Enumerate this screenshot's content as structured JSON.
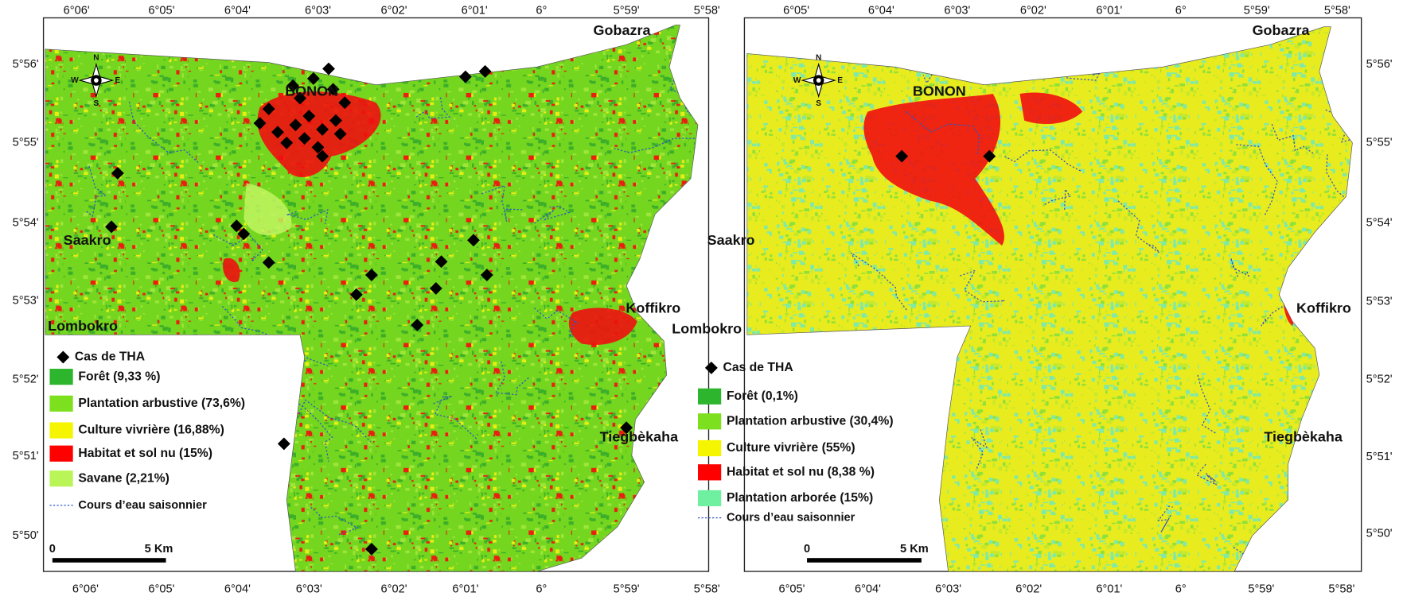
{
  "left_map": {
    "top_longitudes": [
      "6°06'",
      "6°05'",
      "6°04'",
      "6°03'",
      "6°02'",
      "6°01'",
      "6°",
      "5°59'",
      "5°58'"
    ],
    "bottom_longitudes": [
      "6°06'",
      "6°05'",
      "6°04'",
      "6°03'",
      "6°02'",
      "6°01'",
      "6°",
      "5°59'",
      "5°58'"
    ],
    "latitudes": [
      "5°56'",
      "5°55'",
      "5°54'",
      "5°53'",
      "5°52'",
      "5°51'",
      "5°50'"
    ],
    "places": [
      "Gobazra",
      "BONON",
      "Saakro",
      "Lombokro",
      "Koffikro",
      "Tiegbèkaha"
    ],
    "compass": [
      "N",
      "S",
      "E",
      "W"
    ],
    "legend": {
      "title": "Cas de THA",
      "items": [
        "Forêt (9,33 %)",
        "Plantation arbustive (73,6%)",
        "Culture vivrière (16,88%)",
        "Habitat et sol nu (15%)",
        "Savane (2,21%)"
      ],
      "river": "Cours d’eau saisonnier"
    },
    "scale": [
      "0",
      "5 Km"
    ]
  },
  "right_map": {
    "top_longitudes": [
      "6°05'",
      "6°04'",
      "6°03'",
      "6°02'",
      "6°01'",
      "6°",
      "5°59'",
      "5°58'"
    ],
    "bottom_longitudes": [
      "6°05'",
      "6°04'",
      "6°03'",
      "6°02'",
      "6°01'",
      "6°",
      "5°59'",
      "5°58'"
    ],
    "latitudes": [
      "5°56'",
      "5°55'",
      "5°54'",
      "5°53'",
      "5°52'",
      "5°51'",
      "5°50'"
    ],
    "places": [
      "Gobazra",
      "BONON",
      "Saakro",
      "Lombokro",
      "Koffikro",
      "Tiegbèkaha"
    ],
    "compass": [
      "N",
      "S",
      "E",
      "W"
    ],
    "legend": {
      "title": "Cas de THA",
      "items": [
        "Forêt (0,1%)",
        "Plantation arbustive (30,4%)",
        "Culture vivrière (55%)",
        "Habitat et sol nu (8,38 %)",
        "Plantation arborée (15%)"
      ],
      "river": "Cours d’eau saisonnier"
    },
    "scale": [
      "0",
      "5 Km"
    ]
  }
}
